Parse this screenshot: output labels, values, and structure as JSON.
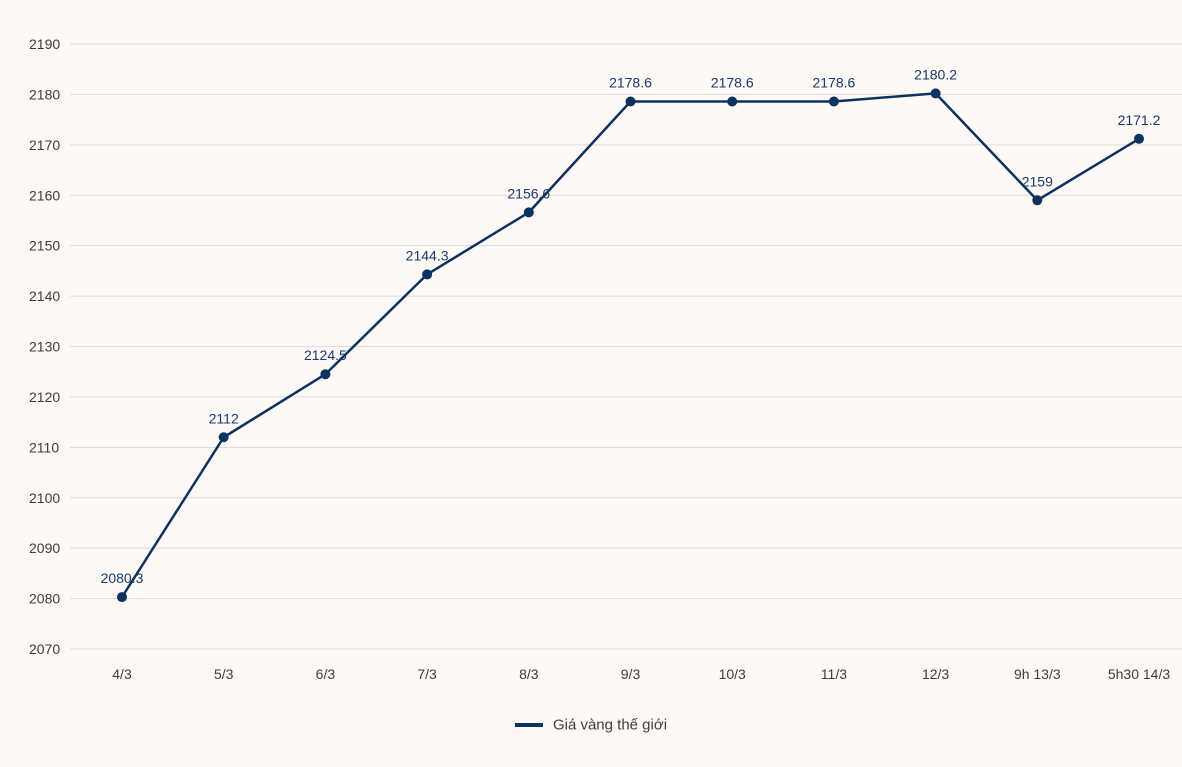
{
  "chart_data": {
    "type": "line",
    "categories": [
      "4/3",
      "5/3",
      "6/3",
      "7/3",
      "8/3",
      "9/3",
      "10/3",
      "11/3",
      "12/3",
      "9h 13/3",
      "5h30 14/3"
    ],
    "series": [
      {
        "name": "Giá vàng thế giới",
        "values": [
          2080.3,
          2112,
          2124.5,
          2144.3,
          2156.6,
          2178.6,
          2178.6,
          2178.6,
          2180.2,
          2159,
          2171.2
        ],
        "labels": [
          "2080.3",
          "2112",
          "2124.5",
          "2144.3",
          "2156.6",
          "2178.6",
          "2178.6",
          "2178.6",
          "2180.2",
          "2159",
          "2171.2"
        ],
        "color": "#0e3260"
      }
    ],
    "yticks": [
      2070,
      2080,
      2090,
      2100,
      2110,
      2120,
      2130,
      2140,
      2150,
      2160,
      2170,
      2180,
      2190
    ],
    "ylim": [
      2070,
      2190
    ],
    "grid": true,
    "legend": "bottom-center",
    "title": "",
    "xlabel": "",
    "ylabel": ""
  }
}
